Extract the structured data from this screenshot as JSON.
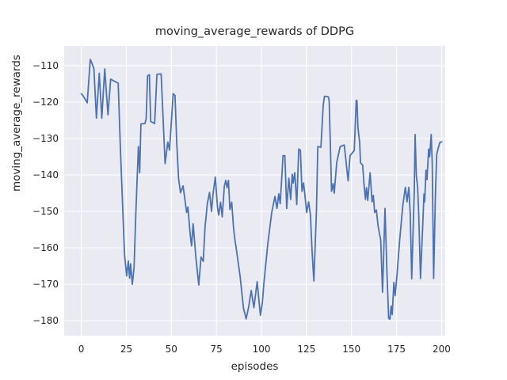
{
  "chart_data": {
    "type": "line",
    "title": "moving_average_rewards of DDPG",
    "xlabel": "episodes",
    "ylabel": "moving_average_rewards",
    "xlim": [
      -9.5,
      202
    ],
    "ylim": [
      -184.1,
      -104.6
    ],
    "xticks": [
      0,
      25,
      50,
      75,
      100,
      125,
      150,
      175,
      200
    ],
    "yticks": [
      -180,
      -170,
      -160,
      -150,
      -140,
      -130,
      -120,
      -110
    ],
    "grid": true,
    "legend": "none",
    "colors": {
      "line": "#4c72b0",
      "plot_background": "#eaeaf2",
      "grid": "#ffffff",
      "text": "#262626",
      "figure_background": "#ffffff"
    },
    "series": [
      {
        "name": "DDPG moving average reward",
        "points": [
          [
            0,
            -117.7
          ],
          [
            1,
            -118.3
          ],
          [
            2,
            -119.1
          ],
          [
            3.3,
            -120.2
          ],
          [
            5,
            -108.3
          ],
          [
            6,
            -109.5
          ],
          [
            7,
            -110.8
          ],
          [
            8.4,
            -124.4
          ],
          [
            10,
            -112.1
          ],
          [
            11.4,
            -124.4
          ],
          [
            13,
            -110.9
          ],
          [
            14.8,
            -123.5
          ],
          [
            16.3,
            -113.7
          ],
          [
            18,
            -114.2
          ],
          [
            20.5,
            -114.8
          ],
          [
            21.7,
            -132.9
          ],
          [
            24,
            -161.9
          ],
          [
            25.2,
            -167.7
          ],
          [
            26.1,
            -163.6
          ],
          [
            26.8,
            -168.3
          ],
          [
            27.4,
            -164.4
          ],
          [
            28.3,
            -170.0
          ],
          [
            29.3,
            -165.5
          ],
          [
            30.3,
            -150.3
          ],
          [
            31.7,
            -132.2
          ],
          [
            32.4,
            -139.4
          ],
          [
            33.1,
            -126.0
          ],
          [
            35.3,
            -125.9
          ],
          [
            36.0,
            -124.6
          ],
          [
            36.8,
            -112.8
          ],
          [
            37.8,
            -112.5
          ],
          [
            38.5,
            -125.3
          ],
          [
            40.7,
            -125.9
          ],
          [
            42.0,
            -112.4
          ],
          [
            44.3,
            -112.3
          ],
          [
            46.5,
            -136.9
          ],
          [
            48.0,
            -131.0
          ],
          [
            49.0,
            -133.2
          ],
          [
            51.0,
            -117.7
          ],
          [
            52.0,
            -118.2
          ],
          [
            53.0,
            -131.1
          ],
          [
            54.0,
            -141.0
          ],
          [
            55.1,
            -144.9
          ],
          [
            56.5,
            -143.0
          ],
          [
            58.5,
            -150.3
          ],
          [
            59.2,
            -148.8
          ],
          [
            60.4,
            -156.1
          ],
          [
            61.2,
            -159.5
          ],
          [
            62.1,
            -153.4
          ],
          [
            63.6,
            -162.5
          ],
          [
            65.2,
            -170.2
          ],
          [
            66.5,
            -162.5
          ],
          [
            67.7,
            -163.7
          ],
          [
            68.7,
            -154.3
          ],
          [
            70.0,
            -147.8
          ],
          [
            71.2,
            -144.8
          ],
          [
            72.3,
            -150.0
          ],
          [
            73.1,
            -145.2
          ],
          [
            74.4,
            -140.6
          ],
          [
            75.6,
            -148.8
          ],
          [
            76.3,
            -151.0
          ],
          [
            77.3,
            -147.5
          ],
          [
            78.2,
            -151.5
          ],
          [
            79.4,
            -143.0
          ],
          [
            80.2,
            -141.5
          ],
          [
            80.9,
            -143.5
          ],
          [
            81.7,
            -141.5
          ],
          [
            82.5,
            -149.5
          ],
          [
            83.5,
            -147.5
          ],
          [
            84.5,
            -154.5
          ],
          [
            85.3,
            -157.9
          ],
          [
            86.3,
            -161.2
          ],
          [
            88.2,
            -168.0
          ],
          [
            90.0,
            -176.5
          ],
          [
            91.5,
            -179.5
          ],
          [
            93.0,
            -176.0
          ],
          [
            94.3,
            -171.7
          ],
          [
            95.8,
            -176.4
          ],
          [
            97.6,
            -169.3
          ],
          [
            99.4,
            -178.5
          ],
          [
            100.5,
            -175.0
          ],
          [
            101.3,
            -170.0
          ],
          [
            103.5,
            -159.0
          ],
          [
            105.7,
            -150.3
          ],
          [
            107.5,
            -145.9
          ],
          [
            108.6,
            -149.2
          ],
          [
            109.6,
            -145.2
          ],
          [
            110.4,
            -147.9
          ],
          [
            112.0,
            -134.7
          ],
          [
            113.0,
            -134.7
          ],
          [
            114.0,
            -149.2
          ],
          [
            115.2,
            -140.9
          ],
          [
            116.2,
            -146.7
          ],
          [
            117.1,
            -139.8
          ],
          [
            117.6,
            -142.2
          ],
          [
            118.5,
            -139.4
          ],
          [
            119.6,
            -148.1
          ],
          [
            120.7,
            -132.9
          ],
          [
            121.6,
            -133.2
          ],
          [
            122.5,
            -144.5
          ],
          [
            123.4,
            -142.2
          ],
          [
            124.0,
            -144.9
          ],
          [
            125.1,
            -150.3
          ],
          [
            126.2,
            -147.4
          ],
          [
            127.2,
            -151.0
          ],
          [
            128.1,
            -160.8
          ],
          [
            129.1,
            -169.1
          ],
          [
            130.5,
            -150.3
          ],
          [
            131.3,
            -132.2
          ],
          [
            133.0,
            -132.4
          ],
          [
            134.3,
            -120.9
          ],
          [
            135.0,
            -118.4
          ],
          [
            137.2,
            -118.6
          ],
          [
            137.6,
            -119.7
          ],
          [
            138.3,
            -132.2
          ],
          [
            138.9,
            -144.5
          ],
          [
            139.8,
            -142.4
          ],
          [
            140.4,
            -145.0
          ],
          [
            141.8,
            -136.5
          ],
          [
            143.7,
            -132.2
          ],
          [
            146.0,
            -131.8
          ],
          [
            148.1,
            -141.6
          ],
          [
            149.2,
            -134.7
          ],
          [
            151.5,
            -133.3
          ],
          [
            152.6,
            -119.5
          ],
          [
            153.0,
            -119.6
          ],
          [
            153.6,
            -127.1
          ],
          [
            154.5,
            -131.1
          ],
          [
            155.0,
            -136.7
          ],
          [
            156.2,
            -137.3
          ],
          [
            156.9,
            -142.3
          ],
          [
            157.7,
            -146.7
          ],
          [
            158.3,
            -143.5
          ],
          [
            159.0,
            -147.0
          ],
          [
            160.3,
            -139.4
          ],
          [
            161.4,
            -147.4
          ],
          [
            162.1,
            -145.6
          ],
          [
            162.8,
            -150.3
          ],
          [
            163.8,
            -149.6
          ],
          [
            164.7,
            -153.9
          ],
          [
            166.2,
            -157.9
          ],
          [
            167.2,
            -172.2
          ],
          [
            168.6,
            -149.2
          ],
          [
            169.7,
            -167.0
          ],
          [
            170.6,
            -179.3
          ],
          [
            171.3,
            -179.6
          ],
          [
            172.0,
            -176.0
          ],
          [
            172.6,
            -178.3
          ],
          [
            173.5,
            -169.5
          ],
          [
            174.2,
            -173.1
          ],
          [
            175.3,
            -167.0
          ],
          [
            176.7,
            -157.9
          ],
          [
            178.5,
            -148.1
          ],
          [
            179.9,
            -143.4
          ],
          [
            180.8,
            -147.4
          ],
          [
            181.8,
            -143.4
          ],
          [
            182.6,
            -151.0
          ],
          [
            183.4,
            -168.5
          ],
          [
            184.8,
            -144.9
          ],
          [
            185.3,
            -128.9
          ],
          [
            186.0,
            -140.2
          ],
          [
            186.7,
            -143.4
          ],
          [
            187.3,
            -151.0
          ],
          [
            188.3,
            -168.4
          ],
          [
            189.5,
            -153.9
          ],
          [
            190.2,
            -145.2
          ],
          [
            190.6,
            -147.4
          ],
          [
            191.3,
            -138.7
          ],
          [
            191.9,
            -141.3
          ],
          [
            192.8,
            -132.9
          ],
          [
            193.4,
            -135.0
          ],
          [
            194.2,
            -128.9
          ],
          [
            194.8,
            -136.5
          ],
          [
            195.6,
            -168.4
          ],
          [
            196.6,
            -144.9
          ],
          [
            197.3,
            -134.3
          ],
          [
            198.0,
            -132.9
          ],
          [
            199.0,
            -131.1
          ],
          [
            200.0,
            -130.9
          ]
        ]
      }
    ]
  }
}
